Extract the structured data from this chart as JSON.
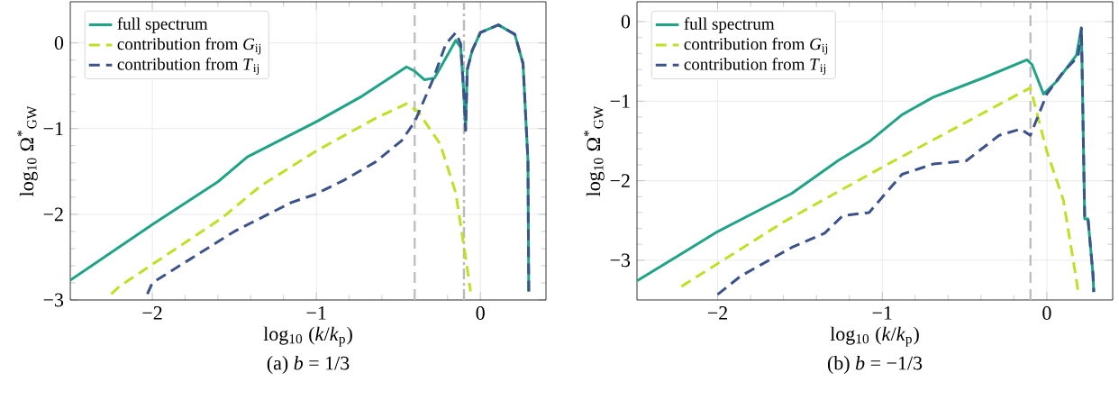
{
  "chart_data": [
    {
      "type": "line",
      "title": "(a) *b* = 1/3",
      "xlabel": "log$_{10}$ (*k*/*k*$_{p}$)",
      "ylabel": "log$_{10}$ Ω$^{*}$$_{GW}$",
      "xlim": [
        -2.5,
        0.4
      ],
      "ylim": [
        -3,
        0.48
      ],
      "xticks": [
        {
          "value": -2,
          "label": "−2"
        },
        {
          "value": -1,
          "label": "−1"
        },
        {
          "value": 0,
          "label": "0"
        }
      ],
      "yticks": [
        {
          "value": -3,
          "label": "−3"
        },
        {
          "value": -2,
          "label": "−2"
        },
        {
          "value": -1,
          "label": "−1"
        },
        {
          "value": 0,
          "label": "0"
        }
      ],
      "grid": true,
      "legend": "top left",
      "ref_lines": [
        {
          "axis": "x",
          "value": -0.4,
          "color": "#bbbbbb",
          "line_style": "dashed"
        },
        {
          "axis": "x",
          "value": -0.1,
          "color": "#bbbbbb",
          "line_style": "dashdot"
        }
      ],
      "series": [
        {
          "name": "full spectrum",
          "color": "#20a386",
          "line_style": "solid",
          "x": [
            -2.5,
            -2,
            -1.6,
            -1.42,
            -1,
            -0.72,
            -0.45,
            -0.4,
            -0.34,
            -0.28,
            -0.2,
            -0.15,
            -0.12,
            -0.1,
            -0.09,
            -0.08,
            -0.05,
            0,
            0.11,
            0.21,
            0.26,
            0.29,
            0.295
          ],
          "values": [
            -2.77,
            -2.12,
            -1.62,
            -1.33,
            -0.92,
            -0.62,
            -0.28,
            -0.33,
            -0.43,
            -0.41,
            -0.14,
            0.03,
            -0.05,
            -0.62,
            -1.02,
            -0.31,
            -0.09,
            0.12,
            0.21,
            0.1,
            -0.24,
            -1.37,
            -2.9
          ]
        },
        {
          "name": "contribution from *G*$_{ij}$",
          "color": "#c0df25",
          "line_style": "dashed",
          "x": [
            -2.25,
            -2.2,
            -1.58,
            -1.34,
            -1,
            -0.64,
            -0.45,
            -0.38,
            -0.245,
            -0.15,
            -0.09,
            -0.06
          ],
          "values": [
            -2.93,
            -2.84,
            -2.05,
            -1.67,
            -1.26,
            -0.88,
            -0.71,
            -0.8,
            -1.18,
            -1.75,
            -2.5,
            -2.9
          ]
        },
        {
          "name": "contribution from *T*$_{ij}$",
          "color": "#3b528b",
          "line_style": "dashed",
          "x": [
            -2.03,
            -2,
            -1.5,
            -1.15,
            -1.01,
            -0.83,
            -0.64,
            -0.48,
            -0.4,
            -0.29,
            -0.21,
            -0.15,
            -0.12,
            -0.1,
            -0.09,
            -0.08,
            -0.05,
            0,
            0.11,
            0.21,
            0.26,
            0.29,
            0.295
          ],
          "values": [
            -2.93,
            -2.8,
            -2.2,
            -1.86,
            -1.77,
            -1.6,
            -1.39,
            -1.14,
            -0.92,
            -0.43,
            -0.01,
            0.12,
            -0.01,
            -0.62,
            -1.02,
            -0.31,
            -0.09,
            0.12,
            0.21,
            0.1,
            -0.24,
            -1.37,
            -2.9
          ]
        }
      ]
    },
    {
      "type": "line",
      "title": "(b) *b* = −1/3",
      "xlabel": "log$_{10}$ (*k*/*k*$_{p}$)",
      "ylabel": "log$_{10}$ Ω$^{*}$$_{GW}$",
      "xlim": [
        -2.49,
        0.4
      ],
      "ylim": [
        -3.5,
        0.25
      ],
      "xticks": [
        {
          "value": -2,
          "label": "−2"
        },
        {
          "value": -1,
          "label": "−1"
        },
        {
          "value": 0,
          "label": "0"
        }
      ],
      "yticks": [
        {
          "value": -3,
          "label": "−3"
        },
        {
          "value": -2,
          "label": "−2"
        },
        {
          "value": -1,
          "label": "−1"
        },
        {
          "value": 0,
          "label": "0"
        }
      ],
      "grid": true,
      "legend": "top left",
      "ref_lines": [
        {
          "axis": "x",
          "value": -0.1,
          "color": "#bbbbbb",
          "line_style": "dashed"
        }
      ],
      "series": [
        {
          "name": "full spectrum",
          "color": "#20a386",
          "line_style": "solid",
          "x": [
            -2.49,
            -2,
            -1.55,
            -1.27,
            -1.08,
            -0.88,
            -0.69,
            -0.39,
            -0.12,
            -0.09,
            -0.02,
            0.06,
            0.18,
            0.21,
            0.23,
            0.25,
            0.28,
            0.285
          ],
          "values": [
            -3.26,
            -2.64,
            -2.16,
            -1.75,
            -1.51,
            -1.17,
            -0.95,
            -0.71,
            -0.48,
            -0.54,
            -0.91,
            -0.75,
            -0.42,
            -0.08,
            -2.48,
            -2.48,
            -3.17,
            -3.4
          ]
        },
        {
          "name": "contribution from *G*$_{ij}$",
          "color": "#c0df25",
          "line_style": "dashed",
          "x": [
            -2.22,
            -1.6,
            -1,
            -0.1,
            0,
            0.1,
            0.18,
            0.19
          ],
          "values": [
            -3.33,
            -2.52,
            -1.83,
            -0.83,
            -1.63,
            -2.24,
            -3.25,
            -3.4
          ]
        },
        {
          "name": "contribution from *T*$_{ij}$",
          "color": "#3b528b",
          "line_style": "dashed",
          "x": [
            -2,
            -1.86,
            -1.55,
            -1.35,
            -1.24,
            -1.08,
            -0.88,
            -0.69,
            -0.49,
            -0.29,
            -0.16,
            -0.1,
            0,
            0.1,
            0.19,
            0.21,
            0.23,
            0.25,
            0.28,
            0.285
          ],
          "values": [
            -3.43,
            -3.2,
            -2.84,
            -2.66,
            -2.44,
            -2.4,
            -1.92,
            -1.79,
            -1.75,
            -1.43,
            -1.35,
            -1.43,
            -0.91,
            -0.63,
            -0.44,
            -0.08,
            -2.48,
            -2.48,
            -3.17,
            -3.4
          ]
        }
      ]
    }
  ]
}
